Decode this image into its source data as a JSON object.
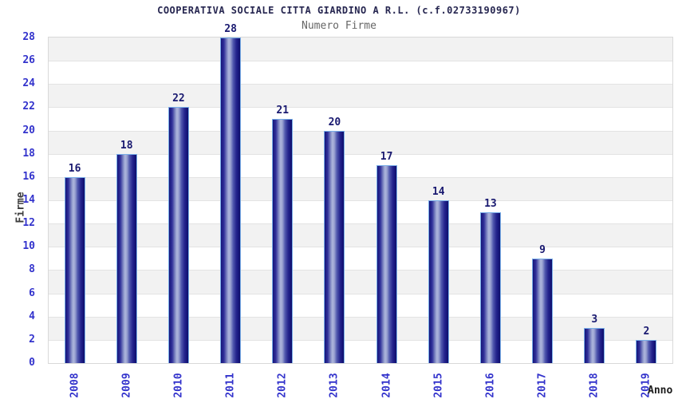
{
  "chart_data": {
    "type": "bar",
    "suptitle": "COOPERATIVA SOCIALE CITTA GIARDINO A R.L. (c.f.02733190967)",
    "title": "Numero Firme",
    "categories": [
      "2008",
      "2009",
      "2010",
      "2011",
      "2012",
      "2013",
      "2014",
      "2015",
      "2016",
      "2017",
      "2018",
      "2019"
    ],
    "values": [
      16,
      18,
      22,
      28,
      21,
      20,
      17,
      14,
      13,
      9,
      3,
      2
    ],
    "xlabel": "Anno",
    "ylabel": "Firme",
    "ylim": [
      0,
      28
    ],
    "ytick_step": 2,
    "yticks": [
      0,
      2,
      4,
      6,
      8,
      10,
      12,
      14,
      16,
      18,
      20,
      22,
      24,
      26,
      28
    ],
    "grid": true,
    "legend_position": "none",
    "band_colors": [
      "#f2f2f2",
      "#ffffff"
    ],
    "colors": {
      "bar_edge_dark": "#15157a",
      "bar_center_light": "#adb5dc",
      "bar_border": "#79aee8",
      "value_label": "#191970",
      "tick_label": "#3333cc",
      "axis_title": "#3d3d3d",
      "x_axis_title": "#1b1b1b",
      "suptitle": "#262650",
      "subtitle": "#666666",
      "gridline": "#e3e3e3",
      "plot_border": "#d9d9d9"
    }
  }
}
